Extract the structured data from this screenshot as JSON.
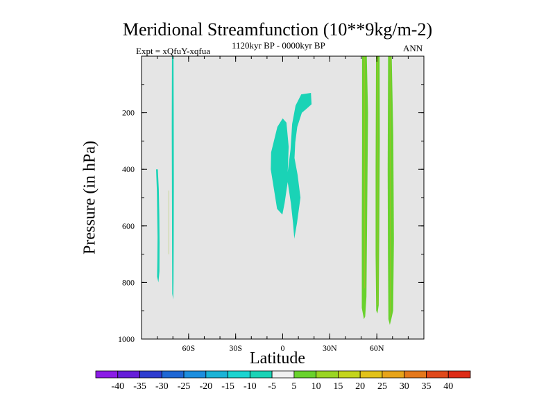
{
  "chart_data": {
    "type": "contour",
    "title": "Meridional Streamfunction (10**9kg/m-2)",
    "subtitle_left": "Expt = xQfuY-xqfua",
    "subtitle_center": "1120kyr BP - 0000kyr BP",
    "subtitle_right": "ANN",
    "xlabel": "Latitude",
    "ylabel": "Pressure (in hPa)",
    "xlim": [
      -90,
      90
    ],
    "ylim": [
      1000,
      0
    ],
    "x_ticks": [
      {
        "value": -60,
        "label": "60S"
      },
      {
        "value": -30,
        "label": "30S"
      },
      {
        "value": 0,
        "label": "0"
      },
      {
        "value": 30,
        "label": "30N"
      },
      {
        "value": 60,
        "label": "60N"
      }
    ],
    "y_ticks": [
      {
        "value": 200,
        "label": "200"
      },
      {
        "value": 400,
        "label": "400"
      },
      {
        "value": 600,
        "label": "600"
      },
      {
        "value": 800,
        "label": "800"
      },
      {
        "value": 1000,
        "label": "1000"
      }
    ],
    "x_minor_step": 10,
    "y_minor_step": 100,
    "background_color": "#e5e5e5",
    "regions": [
      {
        "name": "region-sh-polar-left",
        "sign": "negative",
        "color": "#1ad3b6",
        "points": [
          [
            -80.7,
            400
          ],
          [
            -80.2,
            480
          ],
          [
            -80.0,
            560
          ],
          [
            -79.8,
            640
          ],
          [
            -79.9,
            720
          ],
          [
            -80.1,
            780
          ],
          [
            -79.2,
            800
          ],
          [
            -78.6,
            760
          ],
          [
            -78.5,
            660
          ],
          [
            -78.7,
            560
          ],
          [
            -79.0,
            470
          ],
          [
            -79.6,
            400
          ]
        ]
      },
      {
        "name": "region-sh-line-small",
        "sign": "positive",
        "color": "#9bbe2c",
        "points": [
          [
            -72.8,
            475
          ],
          [
            -72.6,
            475
          ],
          [
            -72.6,
            700
          ],
          [
            -72.8,
            700
          ]
        ]
      },
      {
        "name": "region-sh-polar-right",
        "sign": "negative",
        "color": "#1ad3b6",
        "points": [
          [
            -70.6,
            0
          ],
          [
            -69.6,
            0
          ],
          [
            -69.5,
            200
          ],
          [
            -69.4,
            450
          ],
          [
            -69.5,
            660
          ],
          [
            -69.6,
            800
          ],
          [
            -69.8,
            860
          ],
          [
            -70.4,
            840
          ],
          [
            -70.5,
            700
          ],
          [
            -70.6,
            500
          ],
          [
            -70.7,
            250
          ]
        ]
      },
      {
        "name": "region-equatorial",
        "sign": "negative",
        "color": "#1ad3b6",
        "points": [
          [
            11.8,
            135
          ],
          [
            18.0,
            130
          ],
          [
            18.4,
            170
          ],
          [
            15.4,
            185
          ],
          [
            12.2,
            200
          ],
          [
            9.3,
            250
          ],
          [
            8.0,
            305
          ],
          [
            7.5,
            360
          ],
          [
            9.5,
            420
          ],
          [
            11.3,
            500
          ],
          [
            9.1,
            590
          ],
          [
            7.4,
            645
          ],
          [
            6.6,
            590
          ],
          [
            5.2,
            520
          ],
          [
            3.2,
            445
          ],
          [
            1.2,
            520
          ],
          [
            -0.2,
            560
          ],
          [
            -3.6,
            540
          ],
          [
            -7.6,
            400
          ],
          [
            -7.4,
            340
          ],
          [
            -3.4,
            250
          ],
          [
            0,
            220
          ],
          [
            2.4,
            235
          ],
          [
            3.8,
            320
          ],
          [
            3.2,
            410
          ],
          [
            5.0,
            330
          ],
          [
            6.0,
            240
          ],
          [
            8.2,
            175
          ]
        ]
      },
      {
        "name": "region-nh-band-1",
        "sign": "positive",
        "color": "#69d22c",
        "points": [
          [
            50.6,
            0
          ],
          [
            53.6,
            0
          ],
          [
            54.4,
            200
          ],
          [
            53.8,
            600
          ],
          [
            53.4,
            850
          ],
          [
            52.6,
            920
          ],
          [
            51.8,
            930
          ],
          [
            50.4,
            890
          ],
          [
            50.4,
            600
          ],
          [
            50.6,
            300
          ]
        ]
      },
      {
        "name": "region-nh-line-1",
        "sign": "positive",
        "color": "#9bbe2c",
        "points": [
          [
            51.7,
            0
          ],
          [
            52.3,
            0
          ],
          [
            52.5,
            820
          ],
          [
            51.9,
            820
          ]
        ]
      },
      {
        "name": "region-nh-band-2",
        "sign": "positive",
        "color": "#69d22c",
        "points": [
          [
            59.5,
            0
          ],
          [
            61.8,
            0
          ],
          [
            61.9,
            300
          ],
          [
            61.6,
            600
          ],
          [
            61.2,
            880
          ],
          [
            60.4,
            910
          ],
          [
            59.6,
            900
          ],
          [
            59.2,
            700
          ],
          [
            59.2,
            400
          ],
          [
            59.4,
            150
          ]
        ]
      },
      {
        "name": "region-nh-line-2",
        "sign": "positive",
        "color": "#9bbe2c",
        "points": [
          [
            60.3,
            0
          ],
          [
            60.8,
            0
          ],
          [
            60.9,
            880
          ],
          [
            60.4,
            880
          ]
        ]
      },
      {
        "name": "region-nh-band-3",
        "sign": "positive",
        "color": "#69d22c",
        "points": [
          [
            67.2,
            0
          ],
          [
            69.5,
            0
          ],
          [
            70.5,
            280
          ],
          [
            70.9,
            650
          ],
          [
            70.4,
            900
          ],
          [
            69.2,
            930
          ],
          [
            68.3,
            950
          ],
          [
            67.4,
            930
          ],
          [
            67.1,
            700
          ],
          [
            66.9,
            400
          ]
        ]
      },
      {
        "name": "region-nh-line-3",
        "sign": "positive",
        "color": "#9bbe2c",
        "points": [
          [
            68.2,
            0
          ],
          [
            68.7,
            0
          ],
          [
            68.9,
            920
          ],
          [
            68.4,
            920
          ]
        ]
      }
    ],
    "colorbar": {
      "labels": [
        "-40",
        "-35",
        "-30",
        "-25",
        "-20",
        "-15",
        "-10",
        "-5",
        "5",
        "10",
        "15",
        "20",
        "25",
        "30",
        "35",
        "40"
      ],
      "colors": [
        "#8b1be6",
        "#661ed9",
        "#2f3ccf",
        "#1f67d4",
        "#1d8ede",
        "#1bb3d6",
        "#1bd4d0",
        "#1ad3b6",
        "#f0f0f0",
        "#69d22c",
        "#9ad522",
        "#c4d51c",
        "#e2c21a",
        "#e7a41a",
        "#e4781b",
        "#e0491b",
        "#dd2b16"
      ]
    }
  }
}
